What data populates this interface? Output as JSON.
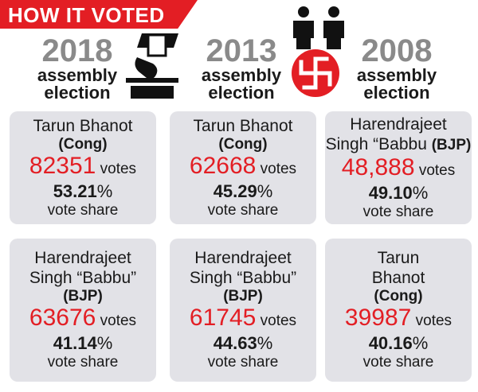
{
  "header": {
    "title": "HOW IT VOTED"
  },
  "columns": [
    {
      "year": "2018",
      "line1": "assembly",
      "line2": "election",
      "winner": {
        "name": "Tarun Bhanot",
        "party": "(Cong)",
        "votes": "82351",
        "votes_suffix": "votes",
        "pct_num": "53.21",
        "pct_sym": "%",
        "share_label": "vote share"
      },
      "runner": {
        "name_line1": "Harendrajeet",
        "name_line2": "Singh “Babbu”",
        "party": "(BJP)",
        "votes": "63676",
        "votes_suffix": "votes",
        "pct_num": "41.14",
        "pct_sym": "%",
        "share_label": "vote share"
      }
    },
    {
      "year": "2013",
      "line1": "assembly",
      "line2": "election",
      "winner": {
        "name": "Tarun Bhanot",
        "party": "(Cong)",
        "votes": "62668",
        "votes_suffix": "votes",
        "pct_num": "45.29",
        "pct_sym": "%",
        "share_label": "vote share"
      },
      "runner": {
        "name_line1": "Harendrajeet",
        "name_line2": "Singh “Babbu”",
        "party": "(BJP)",
        "votes": "61745",
        "votes_suffix": "votes",
        "pct_num": "44.63",
        "pct_sym": "%",
        "share_label": "vote share"
      }
    },
    {
      "year": "2008",
      "line1": "assembly",
      "line2": "election",
      "winner": {
        "name_line1": "Harendrajeet",
        "name_line2": "Singh “Babbu",
        "party": "(BJP)",
        "votes": "48,888",
        "votes_suffix": "votes",
        "pct_num": "49.10",
        "pct_sym": "%",
        "share_label": "vote share"
      },
      "runner": {
        "name_line1": "Tarun",
        "name_line2": "Bhanot",
        "party": "(Cong)",
        "votes": "39987",
        "votes_suffix": "votes",
        "pct_num": "40.16",
        "pct_sym": "%",
        "share_label": "vote share"
      }
    }
  ],
  "colors": {
    "accent": "#e31e24",
    "card": "#e2e2e7",
    "year": "#8a8a8a"
  },
  "icons": [
    "ballot-box-icon",
    "voters-icon",
    "swastika-symbol-icon"
  ]
}
